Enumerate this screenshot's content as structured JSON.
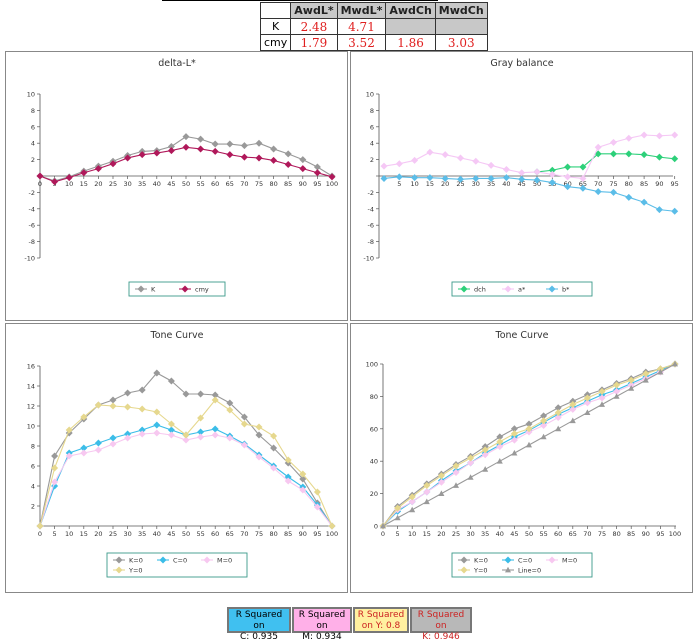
{
  "summary_table": {
    "headers": [
      "AwdL*",
      "MwdL*",
      "AwdCh",
      "MwdCh"
    ],
    "rows": [
      {
        "label": "K",
        "values": [
          "2.48",
          "4.71",
          "",
          ""
        ]
      },
      {
        "label": "cmy",
        "values": [
          "1.79",
          "3.52",
          "1.86",
          "3.03"
        ]
      }
    ]
  },
  "colors": {
    "K": "#999999",
    "cmy": "#b0185a",
    "dch": "#2dd07a",
    "a": "#f5c8f5",
    "b": "#5bbde8",
    "C": "#3bbde8",
    "M": "#f7c8f0",
    "Y": "#e6d88e",
    "Line": "#999999",
    "rsq_C": "#40c0f0",
    "rsq_M": "#ffb0e8",
    "rsq_Y": "#fff0a0",
    "rsq_K": "#b8b8b8"
  },
  "chart_data": [
    {
      "type": "line",
      "title": "delta-L*",
      "x": [
        0,
        5,
        10,
        15,
        20,
        25,
        30,
        35,
        40,
        45,
        50,
        55,
        60,
        65,
        70,
        75,
        80,
        85,
        90,
        95,
        100
      ],
      "xticks": [
        "0",
        "5",
        "10",
        "15",
        "20",
        "25",
        "30",
        "35",
        "40",
        "45",
        "50",
        "55",
        "60",
        "65",
        "70",
        "75",
        "80",
        "85",
        "90",
        "95",
        "100"
      ],
      "ylim": [
        -10,
        10
      ],
      "yticks": [
        "10",
        "8",
        "6",
        "4",
        "2",
        "",
        "-2",
        "-4",
        "-6",
        "-8",
        "-10"
      ],
      "series": [
        {
          "name": "K",
          "color": "#999999",
          "values": [
            0,
            -0.6,
            -0.1,
            0.6,
            1.2,
            1.8,
            2.5,
            3.0,
            3.1,
            3.6,
            4.8,
            4.5,
            3.9,
            3.9,
            3.7,
            4.0,
            3.3,
            2.7,
            2.0,
            1.1,
            0
          ]
        },
        {
          "name": "cmy",
          "color": "#b0185a",
          "values": [
            0,
            -0.7,
            -0.2,
            0.4,
            0.9,
            1.5,
            2.2,
            2.6,
            2.8,
            3.1,
            3.5,
            3.3,
            3.0,
            2.6,
            2.3,
            2.2,
            1.9,
            1.4,
            0.9,
            0.4,
            -0.1
          ]
        }
      ]
    },
    {
      "type": "line",
      "title": "Gray balance",
      "x": [
        0,
        5,
        10,
        15,
        20,
        25,
        30,
        35,
        40,
        45,
        50,
        55,
        60,
        65,
        70,
        75,
        80,
        85,
        90,
        95
      ],
      "xticks": [
        "5",
        "10",
        "15",
        "20",
        "25",
        "30",
        "35",
        "40",
        "45",
        "50",
        "55",
        "60",
        "65",
        "70",
        "75",
        "80",
        "85",
        "90",
        "95"
      ],
      "ylim": [
        -10,
        10
      ],
      "yticks": [
        "10",
        "8",
        "6",
        "4",
        "2",
        "",
        "-2",
        "-4",
        "-6",
        "-8",
        "-10"
      ],
      "series": [
        {
          "name": "dch",
          "color": "#2dd07a",
          "values": [
            null,
            null,
            null,
            null,
            null,
            null,
            null,
            null,
            null,
            null,
            0.5,
            0.7,
            1.1,
            1.1,
            2.7,
            2.7,
            2.7,
            2.6,
            2.3,
            2.1
          ]
        },
        {
          "name": "a*",
          "color": "#f5c8f5",
          "values": [
            1.2,
            1.5,
            1.9,
            2.9,
            2.6,
            2.2,
            1.8,
            1.3,
            0.8,
            0.4,
            0.5,
            0.2,
            -0.1,
            -0.3,
            3.5,
            4.1,
            4.6,
            5.0,
            4.9,
            5.0
          ]
        },
        {
          "name": "b*",
          "color": "#5bbde8",
          "values": [
            -0.3,
            -0.1,
            -0.2,
            -0.2,
            -0.3,
            -0.4,
            -0.3,
            -0.3,
            -0.2,
            -0.4,
            -0.5,
            -0.8,
            -1.3,
            -1.5,
            -1.9,
            -2.0,
            -2.6,
            -3.2,
            -4.1,
            -4.3
          ]
        }
      ]
    },
    {
      "type": "line",
      "title": "Tone Curve",
      "x": [
        0,
        5,
        10,
        15,
        20,
        25,
        30,
        35,
        40,
        45,
        50,
        55,
        60,
        65,
        70,
        75,
        80,
        85,
        90,
        95,
        100
      ],
      "xticks": [
        "0",
        "5",
        "10",
        "15",
        "20",
        "25",
        "30",
        "35",
        "40",
        "45",
        "50",
        "55",
        "60",
        "65",
        "70",
        "75",
        "80",
        "85",
        "90",
        "95",
        "100"
      ],
      "ylim": [
        0,
        16
      ],
      "yticks": [
        "16",
        "14",
        "12",
        "10",
        "8",
        "6",
        "4",
        "2"
      ],
      "series": [
        {
          "name": "K=0",
          "color": "#999999",
          "values": [
            0,
            7.0,
            9.3,
            10.7,
            12.1,
            12.6,
            13.3,
            13.6,
            15.3,
            14.5,
            13.2,
            13.2,
            13.1,
            12.3,
            10.9,
            9.1,
            7.8,
            6.3,
            4.7,
            2.3,
            0
          ]
        },
        {
          "name": "C=0",
          "color": "#3bbde8",
          "values": [
            0,
            4.0,
            7.3,
            7.8,
            8.3,
            8.8,
            9.2,
            9.6,
            10.1,
            9.6,
            9.1,
            9.4,
            9.7,
            9.0,
            8.2,
            7.1,
            6.0,
            4.9,
            3.9,
            2.1,
            0
          ]
        },
        {
          "name": "M=0",
          "color": "#f7c8f0",
          "values": [
            0,
            4.4,
            7.0,
            7.3,
            7.6,
            8.2,
            8.8,
            9.2,
            9.3,
            9.1,
            8.6,
            8.9,
            9.1,
            8.8,
            8.1,
            6.9,
            5.8,
            4.5,
            3.6,
            1.9,
            0
          ]
        },
        {
          "name": "Y=0",
          "color": "#e6d88e",
          "values": [
            0,
            5.8,
            9.6,
            10.9,
            12.1,
            12.0,
            11.9,
            11.7,
            11.4,
            10.2,
            9.1,
            10.8,
            12.6,
            11.6,
            10.2,
            9.9,
            9.0,
            6.6,
            5.2,
            3.4,
            0
          ]
        }
      ]
    },
    {
      "type": "line",
      "title": "Tone Curve",
      "x": [
        0,
        5,
        10,
        15,
        20,
        25,
        30,
        35,
        40,
        45,
        50,
        55,
        60,
        65,
        70,
        75,
        80,
        85,
        90,
        95,
        100
      ],
      "xticks": [
        "0",
        "5",
        "10",
        "15",
        "20",
        "25",
        "30",
        "35",
        "40",
        "45",
        "50",
        "55",
        "60",
        "65",
        "70",
        "75",
        "80",
        "85",
        "90",
        "95",
        "100"
      ],
      "ylim": [
        0,
        100
      ],
      "yticks": [
        "100",
        "80",
        "60",
        "40",
        "20",
        "0"
      ],
      "series": [
        {
          "name": "K=0",
          "color": "#999999",
          "values": [
            0,
            12,
            19,
            26,
            32,
            38,
            43,
            49,
            55,
            60,
            63,
            68,
            73,
            77,
            81,
            84,
            88,
            91,
            95,
            97,
            100
          ]
        },
        {
          "name": "C=0",
          "color": "#3bbde8",
          "values": [
            0,
            9,
            15,
            21,
            28,
            34,
            39,
            45,
            50,
            55,
            59,
            64,
            69,
            73,
            77,
            81,
            84,
            88,
            92,
            96,
            100
          ]
        },
        {
          "name": "M=0",
          "color": "#f7c8f0",
          "values": [
            0,
            10,
            15,
            21,
            27,
            33,
            39,
            44,
            49,
            53,
            58,
            62,
            67,
            72,
            76,
            79,
            83,
            87,
            91,
            95,
            100
          ]
        },
        {
          "name": "Y=0",
          "color": "#e6d88e",
          "values": [
            0,
            11,
            18,
            25,
            31,
            37,
            42,
            47,
            52,
            57,
            60,
            65,
            70,
            75,
            79,
            83,
            87,
            90,
            94,
            97,
            100
          ]
        },
        {
          "name": "Line=0",
          "color": "#999999",
          "values": [
            0,
            5,
            10,
            15,
            20,
            25,
            30,
            35,
            40,
            45,
            50,
            55,
            60,
            65,
            70,
            75,
            80,
            85,
            90,
            95,
            100
          ]
        }
      ]
    }
  ],
  "rsquared": [
    {
      "line1": "R Squared on",
      "line2": "C: 0.935"
    },
    {
      "line1": "R Squared on",
      "line2": "M: 0.934"
    },
    {
      "line1": "R Squared",
      "line2": "on Y: 0.8"
    },
    {
      "line1": "R Squared on",
      "line2": "K: 0.946"
    }
  ]
}
